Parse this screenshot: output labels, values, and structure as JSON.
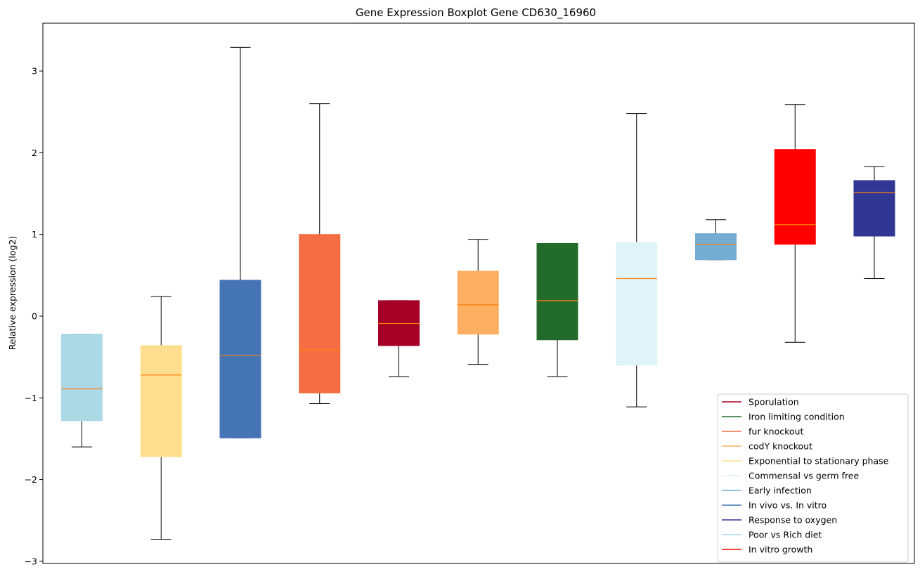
{
  "chart_data": {
    "type": "boxplot",
    "title": "Gene Expression Boxplot Gene CD630_16960",
    "xlabel": "",
    "ylabel": "Relative expression (log2)",
    "ylim": [
      -3.05,
      3.6
    ],
    "yticks": [
      3,
      2,
      1,
      0,
      -1,
      -2,
      -3
    ],
    "ytick_labels": [
      "3",
      "2",
      "1",
      "0",
      "−1",
      "−2",
      "−3"
    ],
    "x_tick_labels_visible": false,
    "median_color": "#ff7f0e",
    "boxes": [
      {
        "group": "Poor vs Rich diet",
        "color": "#add8e6",
        "whisker_low": -1.6,
        "q1": -1.28,
        "median": -0.89,
        "q3": -0.22,
        "whisker_high": -0.22
      },
      {
        "group": "Exponential to stationary phase",
        "color": "#ffdf8f",
        "whisker_low": -2.73,
        "q1": -1.72,
        "median": -0.72,
        "q3": -0.36,
        "whisker_high": 0.24
      },
      {
        "group": "In vivo vs. In vitro",
        "color": "#4575b4",
        "whisker_low": -1.49,
        "q1": -1.49,
        "median": -0.48,
        "q3": 0.44,
        "whisker_high": 3.29
      },
      {
        "group": "fur knockout",
        "color": "#f46d43",
        "whisker_low": -1.07,
        "q1": -0.94,
        "median": -0.41,
        "q3": 1.0,
        "whisker_high": 2.6
      },
      {
        "group": "Sporulation",
        "color": "#a50026",
        "whisker_low": -0.74,
        "q1": -0.36,
        "median": -0.09,
        "q3": 0.19,
        "whisker_high": 0.19
      },
      {
        "group": "codY knockout",
        "color": "#fdae61",
        "whisker_low": -0.59,
        "q1": -0.22,
        "median": 0.14,
        "q3": 0.55,
        "whisker_high": 0.94
      },
      {
        "group": "Iron limiting condition",
        "color": "#236b2a",
        "whisker_low": -0.74,
        "q1": -0.29,
        "median": 0.19,
        "q3": 0.89,
        "whisker_high": 0.89
      },
      {
        "group": "Commensal vs germ free",
        "color": "#e0f3f8",
        "whisker_low": -1.11,
        "q1": -0.6,
        "median": 0.46,
        "q3": 0.9,
        "whisker_high": 2.48
      },
      {
        "group": "Early infection",
        "color": "#74add1",
        "whisker_low": 0.69,
        "q1": 0.69,
        "median": 0.88,
        "q3": 1.01,
        "whisker_high": 1.18
      },
      {
        "group": "In vitro growth",
        "color": "#ff0000",
        "whisker_low": -0.32,
        "q1": 0.88,
        "median": 1.12,
        "q3": 2.04,
        "whisker_high": 2.59
      },
      {
        "group": "Response to oxygen",
        "color": "#313695",
        "whisker_low": 0.46,
        "q1": 0.98,
        "median": 1.51,
        "q3": 1.66,
        "whisker_high": 1.83
      }
    ],
    "legend": {
      "placement": "lower-right",
      "entries": [
        {
          "label": "Sporulation",
          "color": "#a50026"
        },
        {
          "label": "Iron limiting condition",
          "color": "#236b2a"
        },
        {
          "label": "fur knockout",
          "color": "#f46d43"
        },
        {
          "label": "codY knockout",
          "color": "#fdae61"
        },
        {
          "label": "Exponential to stationary phase",
          "color": "#ffdf8f"
        },
        {
          "label": "Commensal vs germ free",
          "color": "#e0f3f8"
        },
        {
          "label": "Early infection",
          "color": "#74add1"
        },
        {
          "label": "In vivo vs. In vitro",
          "color": "#4575b4"
        },
        {
          "label": "Response to oxygen",
          "color": "#313695"
        },
        {
          "label": "Poor vs Rich diet",
          "color": "#add8e6"
        },
        {
          "label": "In vitro growth",
          "color": "#ff0000"
        }
      ]
    }
  }
}
